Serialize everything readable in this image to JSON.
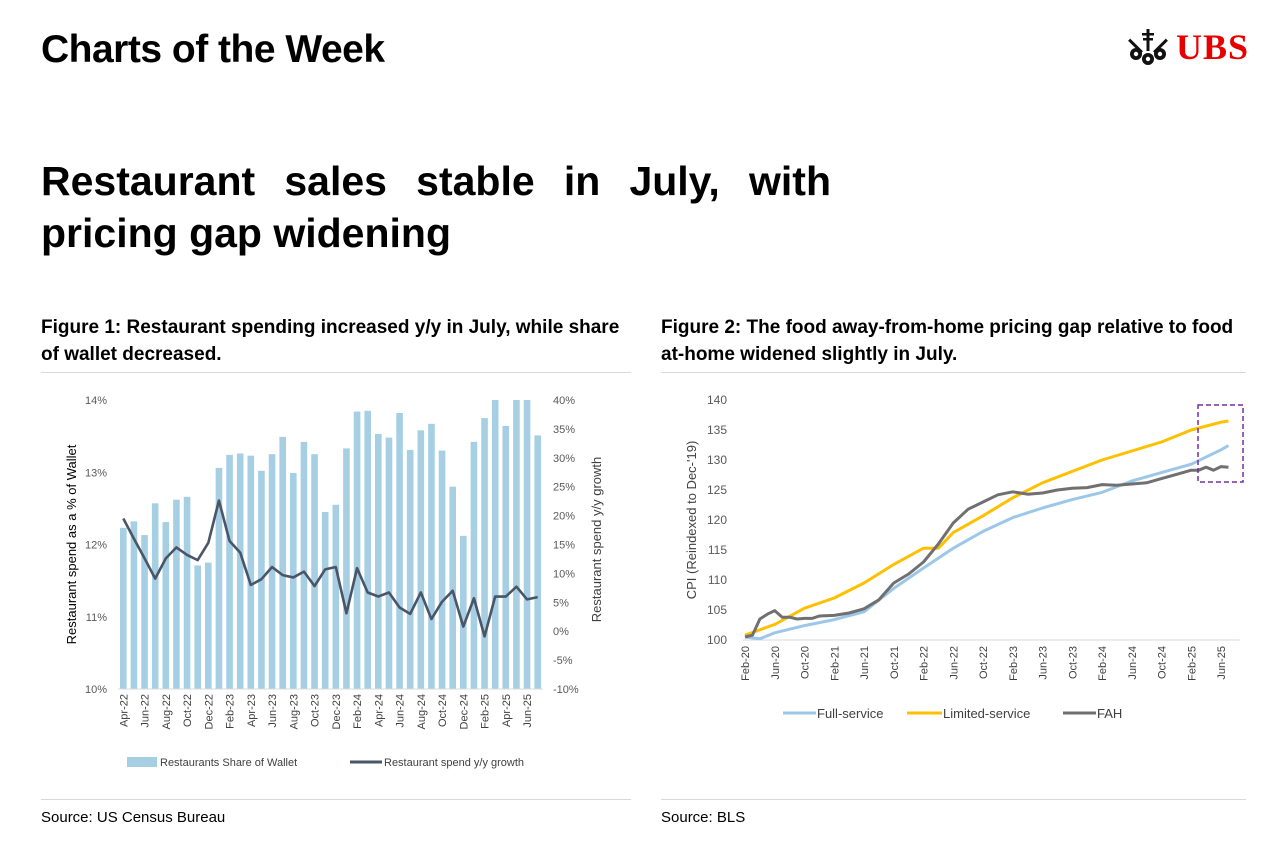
{
  "header": {
    "title": "Charts of the Week",
    "logo_text": "UBS"
  },
  "headline": "Restaurant sales stable in July, with pricing gap widening",
  "figure1": {
    "caption": "Figure 1: Restaurant spending increased y/y in July, while share of wallet decreased.",
    "source": "Source: US Census Bureau"
  },
  "figure2": {
    "caption": "Figure 2: The food away-from-home pricing gap relative to food at-home widened slightly in July.",
    "source": "Source: BLS"
  },
  "colors": {
    "bar": "#a6cfe4",
    "growth": "#4a5568",
    "full": "#9cc7e8",
    "limited": "#ffc000",
    "fah": "#707070",
    "box": "#7030a0",
    "ubs_red": "#e60000"
  },
  "chart_data": [
    {
      "type": "bar+line",
      "ylabel": "Restaurant spend as a % of Wallet",
      "y2label": "Restaurant spend y/y growth",
      "ylim": [
        10,
        14
      ],
      "y2lim": [
        -10,
        40
      ],
      "yticks": [
        "10%",
        "11%",
        "12%",
        "13%",
        "14%"
      ],
      "y2ticks": [
        "-10%",
        "-5%",
        "0%",
        "5%",
        "10%",
        "15%",
        "20%",
        "25%",
        "30%",
        "35%",
        "40%"
      ],
      "categories": [
        "Apr-22",
        "May-22",
        "Jun-22",
        "Jul-22",
        "Aug-22",
        "Sep-22",
        "Oct-22",
        "Nov-22",
        "Dec-22",
        "Jan-23",
        "Feb-23",
        "Mar-23",
        "Apr-23",
        "May-23",
        "Jun-23",
        "Jul-23",
        "Aug-23",
        "Sep-23",
        "Oct-23",
        "Nov-23",
        "Dec-23",
        "Jan-24",
        "Feb-24",
        "Mar-24",
        "Apr-24",
        "May-24",
        "Jun-24",
        "Jul-24",
        "Aug-24",
        "Sep-24",
        "Oct-24",
        "Nov-24",
        "Dec-24",
        "Jan-25",
        "Feb-25",
        "Mar-25",
        "Apr-25",
        "May-25",
        "Jun-25",
        "Jul-25"
      ],
      "tick_labels": [
        "Apr-22",
        "Jun-22",
        "Aug-22",
        "Oct-22",
        "Dec-22",
        "Feb-23",
        "Apr-23",
        "Jun-23",
        "Aug-23",
        "Oct-23",
        "Dec-23",
        "Feb-24",
        "Apr-24",
        "Jun-24",
        "Aug-24",
        "Oct-24",
        "Dec-24",
        "Feb-25",
        "Apr-25",
        "Jun-25"
      ],
      "series": [
        {
          "name": "Restaurants Share of Wallet",
          "type": "bar",
          "axis": "left",
          "values": [
            12.23,
            12.32,
            12.13,
            12.57,
            12.31,
            12.62,
            12.66,
            11.71,
            11.75,
            13.06,
            13.24,
            13.26,
            13.23,
            13.02,
            13.25,
            13.49,
            12.99,
            13.42,
            13.25,
            12.45,
            12.55,
            13.33,
            13.84,
            13.85,
            13.53,
            13.48,
            13.82,
            13.31,
            13.58,
            13.67,
            13.3,
            12.8,
            12.12,
            13.42,
            13.75,
            14.0,
            13.64,
            14.0,
            14.0,
            13.51
          ]
        },
        {
          "name": "Restaurant spend y/y growth",
          "type": "line",
          "axis": "right",
          "values": [
            19.5,
            16.0,
            12.6,
            9.1,
            12.6,
            14.5,
            13.2,
            12.3,
            15.3,
            22.6,
            15.6,
            13.6,
            8.0,
            9.0,
            11.1,
            9.7,
            9.3,
            10.3,
            7.8,
            10.7,
            11.1,
            3.1,
            10.9,
            6.7,
            6.0,
            6.7,
            4.1,
            3.0,
            6.7,
            2.1,
            5.1,
            7.0,
            0.8,
            5.7,
            -0.9,
            6.0,
            6.0,
            7.7,
            5.5,
            5.9
          ]
        }
      ],
      "legend": "bottom"
    },
    {
      "type": "line",
      "ylabel": "CPI (Reindexed to Dec-'19)",
      "ylim": [
        100,
        140
      ],
      "yticks": [
        "100",
        "105",
        "110",
        "115",
        "120",
        "125",
        "130",
        "135",
        "140"
      ],
      "x_start": "Feb-20",
      "x_months": 66,
      "tick_labels": [
        "Feb-20",
        "Jun-20",
        "Oct-20",
        "Feb-21",
        "Jun-21",
        "Oct-21",
        "Feb-22",
        "Jun-22",
        "Oct-22",
        "Feb-23",
        "Jun-23",
        "Oct-23",
        "Feb-24",
        "Jun-24",
        "Oct-24",
        "Feb-25",
        "Jun-25"
      ],
      "series": [
        {
          "name": "Full-service",
          "points": [
            [
              0,
              100.5
            ],
            [
              2,
              100.2
            ],
            [
              4,
              101.2
            ],
            [
              6,
              101.8
            ],
            [
              8,
              102.4
            ],
            [
              12,
              103.4
            ],
            [
              16,
              104.7
            ],
            [
              20,
              108.6
            ],
            [
              24,
              112.0
            ],
            [
              28,
              115.3
            ],
            [
              32,
              118.1
            ],
            [
              36,
              120.4
            ],
            [
              40,
              122.0
            ],
            [
              44,
              123.4
            ],
            [
              48,
              124.6
            ],
            [
              52,
              126.5
            ],
            [
              56,
              127.9
            ],
            [
              60,
              129.3
            ],
            [
              64,
              131.7
            ],
            [
              65,
              132.4
            ]
          ]
        },
        {
          "name": "Limited-service",
          "points": [
            [
              0,
              100.8
            ],
            [
              4,
              102.6
            ],
            [
              8,
              105.3
            ],
            [
              12,
              107.0
            ],
            [
              16,
              109.5
            ],
            [
              20,
              112.6
            ],
            [
              24,
              115.3
            ],
            [
              26,
              115.3
            ],
            [
              28,
              117.9
            ],
            [
              32,
              120.7
            ],
            [
              36,
              123.7
            ],
            [
              40,
              126.2
            ],
            [
              44,
              128.1
            ],
            [
              48,
              130.0
            ],
            [
              52,
              131.5
            ],
            [
              56,
              133.0
            ],
            [
              60,
              135.0
            ],
            [
              64,
              136.3
            ],
            [
              65,
              136.5
            ]
          ]
        },
        {
          "name": "FAH",
          "points": [
            [
              0,
              100.5
            ],
            [
              1,
              100.8
            ],
            [
              2,
              103.5
            ],
            [
              3,
              104.3
            ],
            [
              4,
              104.9
            ],
            [
              5,
              103.8
            ],
            [
              6,
              103.8
            ],
            [
              7,
              103.5
            ],
            [
              8,
              103.6
            ],
            [
              9,
              103.6
            ],
            [
              10,
              104.0
            ],
            [
              12,
              104.1
            ],
            [
              14,
              104.5
            ],
            [
              16,
              105.2
            ],
            [
              18,
              106.7
            ],
            [
              20,
              109.5
            ],
            [
              22,
              111.0
            ],
            [
              24,
              113.0
            ],
            [
              26,
              116.0
            ],
            [
              28,
              119.5
            ],
            [
              30,
              121.8
            ],
            [
              32,
              123.0
            ],
            [
              34,
              124.2
            ],
            [
              36,
              124.7
            ],
            [
              38,
              124.3
            ],
            [
              40,
              124.5
            ],
            [
              42,
              125.0
            ],
            [
              44,
              125.3
            ],
            [
              46,
              125.4
            ],
            [
              48,
              125.9
            ],
            [
              50,
              125.8
            ],
            [
              52,
              126.0
            ],
            [
              54,
              126.2
            ],
            [
              56,
              126.9
            ],
            [
              58,
              127.6
            ],
            [
              60,
              128.3
            ],
            [
              61,
              128.3
            ],
            [
              62,
              128.8
            ],
            [
              63,
              128.3
            ],
            [
              64,
              128.9
            ],
            [
              65,
              128.8
            ]
          ]
        }
      ],
      "annotation": "dashed box highlighting Mar-25 to Jul-25",
      "legend": "bottom"
    }
  ]
}
